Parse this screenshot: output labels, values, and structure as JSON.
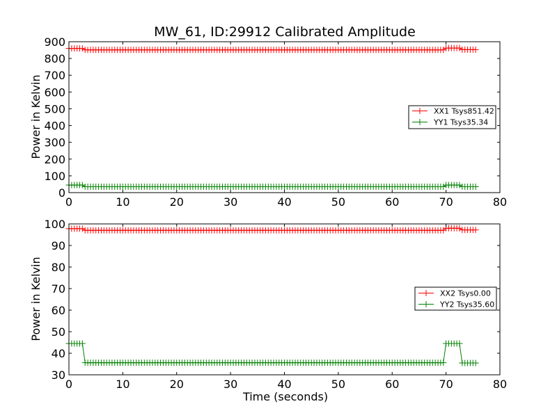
{
  "window": {
    "title": "MW_61, ID:29912 Calibrated Amplitude"
  },
  "colors": {
    "xx": "#ff0000",
    "yy": "#008000",
    "axes": "#000000",
    "background": "#ffffff"
  },
  "chart_data": [
    {
      "type": "line",
      "title": "MW_61, ID:29912 Calibrated Amplitude",
      "xlabel": "",
      "ylabel": "Power in Kelvin",
      "xlim": [
        0,
        80
      ],
      "ylim": [
        0,
        900
      ],
      "xticks": [
        "0",
        "10",
        "20",
        "30",
        "40",
        "50",
        "60",
        "70",
        "80"
      ],
      "yticks": [
        "0",
        "100",
        "200",
        "300",
        "400",
        "500",
        "600",
        "700",
        "800",
        "900"
      ],
      "grid": false,
      "legend_position": "center-right",
      "markers": "+",
      "x": {
        "start": 0,
        "step": 0.5,
        "count": 152
      },
      "series": [
        {
          "name": "XX1 Tsys851.42",
          "color": "#ff0000",
          "segments": [
            [
              0,
              2.5,
              860
            ],
            [
              3,
              69.5,
              851
            ],
            [
              70,
              72.5,
              862
            ],
            [
              73,
              75.5,
              853
            ]
          ]
        },
        {
          "name": "YY1 Tsys35.34",
          "color": "#008000",
          "segments": [
            [
              0,
              2.5,
              45
            ],
            [
              3,
              69.5,
              35
            ],
            [
              70,
              72.5,
              45
            ],
            [
              73,
              75.5,
              35
            ]
          ]
        }
      ]
    },
    {
      "type": "line",
      "title": "",
      "xlabel": "Time (seconds)",
      "ylabel": "Power in Kelvin",
      "xlim": [
        0,
        80
      ],
      "ylim": [
        30,
        100
      ],
      "xticks": [
        "0",
        "10",
        "20",
        "30",
        "40",
        "50",
        "60",
        "70",
        "80"
      ],
      "yticks": [
        "30",
        "40",
        "50",
        "60",
        "70",
        "80",
        "90",
        "100"
      ],
      "grid": false,
      "legend_position": "center-right",
      "markers": "+",
      "x": {
        "start": 0,
        "step": 0.5,
        "count": 152
      },
      "series": [
        {
          "name": "XX2 Tsys0.00",
          "color": "#ff0000",
          "segments": [
            [
              0,
              2.5,
              97.8
            ],
            [
              3,
              69.5,
              97.0
            ],
            [
              70,
              72.5,
              98.0
            ],
            [
              73,
              75.5,
              97.2
            ]
          ]
        },
        {
          "name": "YY2 Tsys35.60",
          "color": "#008000",
          "segments": [
            [
              0,
              2.5,
              44.5
            ],
            [
              3,
              69.5,
              35.6
            ],
            [
              70,
              72.5,
              44.5
            ],
            [
              73,
              75.5,
              35.5
            ]
          ]
        }
      ]
    }
  ]
}
